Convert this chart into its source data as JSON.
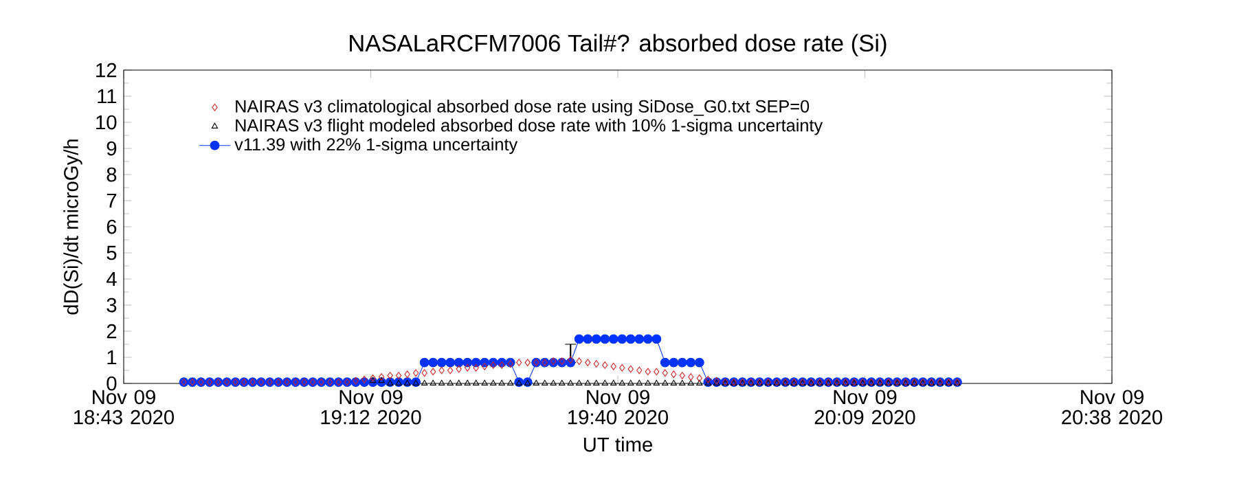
{
  "chart_data": {
    "type": "line",
    "title": "NASALaRCFM7006 Tail#? absorbed dose rate (Si)",
    "xlabel": "UT time",
    "ylabel": "dD(Si)/dt microGy/h",
    "xlim": [
      "2020-11-09T18:43",
      "2020-11-09T20:38"
    ],
    "xticks": [
      {
        "value": "2020-11-09T18:43:00",
        "label": "Nov 09 18:43 2020"
      },
      {
        "value": "2020-11-09T19:11:45",
        "label": "Nov 09 19:12 2020"
      },
      {
        "value": "2020-11-09T19:40:30",
        "label": "Nov 09 19:40 2020"
      },
      {
        "value": "2020-11-09T20:09:15",
        "label": "Nov 09 20:09 2020"
      },
      {
        "value": "2020-11-09T20:38:00",
        "label": "Nov 09 20:38 2020"
      }
    ],
    "ylim": [
      0,
      12
    ],
    "yticks": [
      0,
      1,
      2,
      3,
      4,
      5,
      6,
      7,
      8,
      9,
      10,
      11,
      12
    ],
    "legend": "top left",
    "x": [
      "2020-11-09T18:50",
      "2020-11-09T18:51",
      "2020-11-09T18:52",
      "2020-11-09T18:53",
      "2020-11-09T18:54",
      "2020-11-09T18:55",
      "2020-11-09T18:56",
      "2020-11-09T18:57",
      "2020-11-09T18:58",
      "2020-11-09T18:59",
      "2020-11-09T19:00",
      "2020-11-09T19:01",
      "2020-11-09T19:02",
      "2020-11-09T19:03",
      "2020-11-09T19:04",
      "2020-11-09T19:05",
      "2020-11-09T19:06",
      "2020-11-09T19:07",
      "2020-11-09T19:08",
      "2020-11-09T19:09",
      "2020-11-09T19:10",
      "2020-11-09T19:11",
      "2020-11-09T19:12",
      "2020-11-09T19:13",
      "2020-11-09T19:14",
      "2020-11-09T19:15",
      "2020-11-09T19:16",
      "2020-11-09T19:17",
      "2020-11-09T19:18",
      "2020-11-09T19:19",
      "2020-11-09T19:20",
      "2020-11-09T19:21",
      "2020-11-09T19:22",
      "2020-11-09T19:23",
      "2020-11-09T19:24",
      "2020-11-09T19:25",
      "2020-11-09T19:26",
      "2020-11-09T19:27",
      "2020-11-09T19:28",
      "2020-11-09T19:29",
      "2020-11-09T19:30",
      "2020-11-09T19:31",
      "2020-11-09T19:32",
      "2020-11-09T19:33",
      "2020-11-09T19:34",
      "2020-11-09T19:35",
      "2020-11-09T19:36",
      "2020-11-09T19:37",
      "2020-11-09T19:38",
      "2020-11-09T19:39",
      "2020-11-09T19:40",
      "2020-11-09T19:41",
      "2020-11-09T19:42",
      "2020-11-09T19:43",
      "2020-11-09T19:44",
      "2020-11-09T19:45",
      "2020-11-09T19:46",
      "2020-11-09T19:47",
      "2020-11-09T19:48",
      "2020-11-09T19:49",
      "2020-11-09T19:50",
      "2020-11-09T19:51",
      "2020-11-09T19:52",
      "2020-11-09T19:53",
      "2020-11-09T19:54",
      "2020-11-09T19:55",
      "2020-11-09T19:56",
      "2020-11-09T19:57",
      "2020-11-09T19:58",
      "2020-11-09T19:59",
      "2020-11-09T20:00",
      "2020-11-09T20:01",
      "2020-11-09T20:02",
      "2020-11-09T20:03",
      "2020-11-09T20:04",
      "2020-11-09T20:05",
      "2020-11-09T20:06",
      "2020-11-09T20:07",
      "2020-11-09T20:08",
      "2020-11-09T20:09",
      "2020-11-09T20:10",
      "2020-11-09T20:11",
      "2020-11-09T20:12",
      "2020-11-09T20:13",
      "2020-11-09T20:14",
      "2020-11-09T20:15",
      "2020-11-09T20:16",
      "2020-11-09T20:17",
      "2020-11-09T20:18",
      "2020-11-09T20:19",
      "2020-11-09T20:20"
    ],
    "series": [
      {
        "name": "NAIRAS v3 climatological absorbed dose rate using SiDose_G0.txt SEP=0",
        "type": "scatter",
        "marker": "diamond",
        "color": "#cc2222",
        "values": [
          0.05,
          0.05,
          0.05,
          0.05,
          0.05,
          0.05,
          0.05,
          0.05,
          0.05,
          0.05,
          0.05,
          0.05,
          0.05,
          0.05,
          0.05,
          0.05,
          0.05,
          0.05,
          0.05,
          0.05,
          0.1,
          0.15,
          0.2,
          0.25,
          0.3,
          0.3,
          0.35,
          0.4,
          0.4,
          0.45,
          0.5,
          0.5,
          0.55,
          0.6,
          0.6,
          0.65,
          0.7,
          0.7,
          0.75,
          0.8,
          0.8,
          0.8,
          0.8,
          0.85,
          0.85,
          0.9,
          0.85,
          0.8,
          0.75,
          0.7,
          0.65,
          0.6,
          0.55,
          0.5,
          0.45,
          0.45,
          0.4,
          0.35,
          0.3,
          0.25,
          0.2,
          0.15,
          0.1,
          0.05,
          0.05,
          0.05,
          0.05,
          0.05,
          0.05,
          0.05,
          0.05,
          0.05,
          0.05,
          0.05,
          0.05,
          0.05,
          0.05,
          0.05,
          0.05,
          0.05,
          0.05,
          0.05,
          0.05,
          0.05,
          0.05,
          0.05,
          0.05,
          0.05,
          0.05,
          0.05,
          0.05
        ]
      },
      {
        "name": "NAIRAS v3 flight modeled absorbed dose rate with 10% 1-sigma uncertainty",
        "type": "scatter",
        "marker": "triangle",
        "color": "#000000",
        "values": [
          null,
          null,
          null,
          null,
          null,
          null,
          null,
          null,
          null,
          null,
          null,
          null,
          null,
          null,
          null,
          null,
          null,
          null,
          null,
          null,
          null,
          null,
          0.1,
          0.1,
          0,
          0,
          0,
          0,
          0,
          0,
          0,
          0,
          0,
          0,
          0,
          0,
          0,
          0,
          0,
          0,
          0,
          0,
          0,
          0,
          0,
          0,
          0,
          0,
          0,
          0,
          0,
          0,
          0,
          0,
          0,
          0,
          0,
          0,
          0,
          0,
          0,
          0,
          0,
          0,
          0,
          0,
          0,
          0,
          0,
          0,
          0,
          0,
          0,
          0,
          0,
          0,
          0,
          0,
          0,
          0,
          0,
          0,
          0,
          0,
          0,
          0,
          0,
          0,
          0,
          0,
          0
        ]
      },
      {
        "name": "v11.39 with 22% 1-sigma uncertainty",
        "type": "line",
        "marker": "circle",
        "color": "#0033ff",
        "values": [
          0.05,
          0.05,
          0.05,
          0.05,
          0.05,
          0.05,
          0.05,
          0.05,
          0.05,
          0.05,
          0.05,
          0.05,
          0.05,
          0.05,
          0.05,
          0.05,
          0.05,
          0.05,
          0.05,
          0.05,
          0.05,
          0.05,
          0.05,
          0.05,
          0.05,
          0.05,
          0.05,
          0.05,
          0.8,
          0.8,
          0.8,
          0.8,
          0.8,
          0.8,
          0.8,
          0.8,
          0.8,
          0.8,
          0.8,
          0.05,
          0.05,
          0.8,
          0.8,
          0.8,
          0.8,
          0.8,
          1.7,
          1.7,
          1.7,
          1.7,
          1.7,
          1.7,
          1.7,
          1.7,
          1.7,
          1.7,
          0.8,
          0.8,
          0.8,
          0.8,
          0.8,
          0.05,
          0.05,
          0.05,
          0.05,
          0.05,
          0.05,
          0.05,
          0.05,
          0.05,
          0.05,
          0.05,
          0.05,
          0.05,
          0.05,
          0.05,
          0.05,
          0.05,
          0.05,
          0.05,
          0.05,
          0.05,
          0.05,
          0.05,
          0.05,
          0.05,
          0.05,
          0.05,
          0.05,
          0.05,
          0.05
        ],
        "errors": [
          null,
          null,
          null,
          null,
          null,
          null,
          null,
          null,
          null,
          null,
          null,
          null,
          null,
          null,
          null,
          null,
          null,
          null,
          null,
          null,
          null,
          null,
          null,
          null,
          null,
          null,
          null,
          null,
          null,
          null,
          null,
          null,
          null,
          null,
          null,
          null,
          null,
          null,
          null,
          null,
          null,
          null,
          null,
          null,
          null,
          [
            0.8,
            1.5
          ],
          null,
          null,
          null,
          null,
          null,
          null,
          null,
          null,
          null,
          null,
          null,
          null,
          null,
          null,
          null,
          null,
          null,
          null,
          null,
          null,
          null,
          null,
          null,
          null,
          null,
          null,
          null,
          null,
          null,
          null,
          null,
          null,
          null,
          null,
          null,
          null,
          null,
          null,
          null,
          null,
          null,
          null,
          null,
          null,
          null
        ]
      }
    ]
  }
}
